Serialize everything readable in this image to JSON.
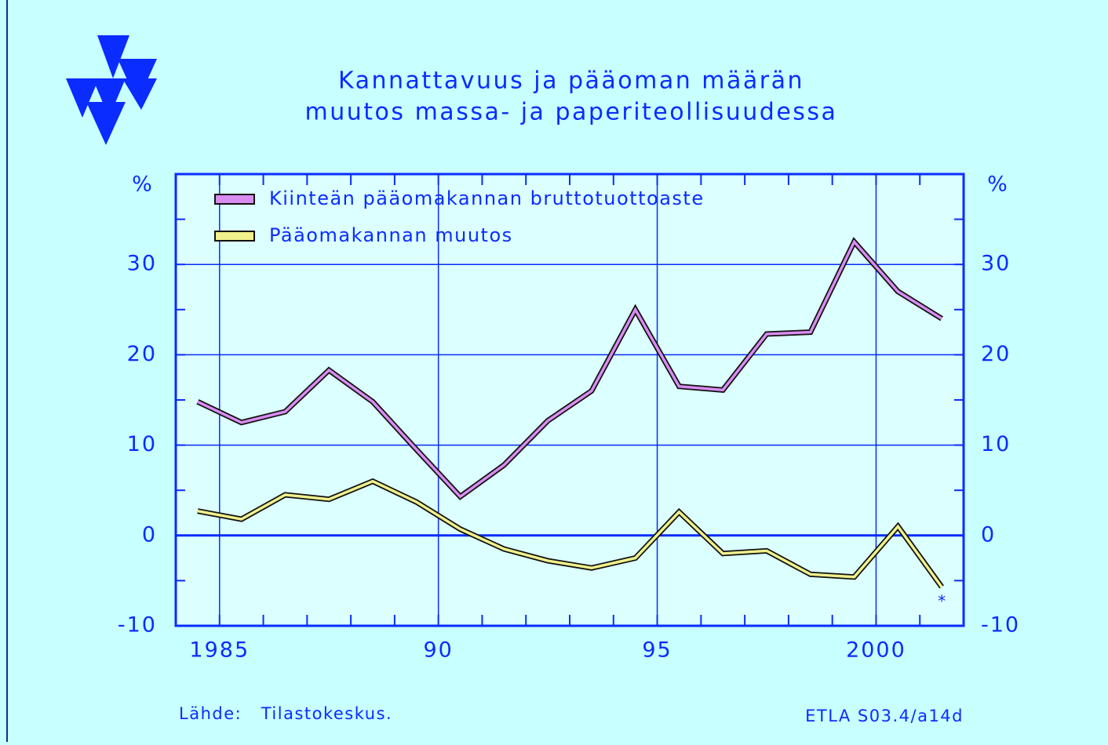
{
  "chart_data": {
    "type": "line",
    "title": [
      "Kannattavuus ja pääoman määrän",
      "muutos massa- ja paperiteollisuudessa"
    ],
    "y_label": "%",
    "x": [
      1984.5,
      1985.5,
      1986.5,
      1987.5,
      1988.5,
      1989.5,
      1990.5,
      1991.5,
      1992.5,
      1993.5,
      1994.5,
      1995.5,
      1996.5,
      1997.5,
      1998.5,
      1999.5,
      2000.5,
      2001.5
    ],
    "series": [
      {
        "name": "Kiinteän pääomakannan bruttotuottoaste",
        "color": "#d98cf0",
        "values": [
          14.8,
          12.5,
          13.7,
          18.3,
          14.8,
          9.5,
          4.3,
          7.8,
          12.7,
          16,
          25,
          16.5,
          16.1,
          22.3,
          22.5,
          32.5,
          27,
          24
        ]
      },
      {
        "name": "Pääomakannan muutos",
        "color": "#f0f08c",
        "values": [
          2.7,
          1.8,
          4.5,
          4,
          6,
          3.7,
          0.7,
          -1.5,
          -2.8,
          -3.6,
          -2.5,
          2.6,
          -2,
          -1.7,
          -4.3,
          -4.6,
          1,
          -5.7
        ]
      }
    ],
    "xlim": [
      1984,
      2002
    ],
    "xticks": [
      1985,
      {
        "value": 1990,
        "label": "90"
      },
      {
        "value": 1995,
        "label": "95"
      },
      2000
    ],
    "ylim": [
      -10,
      40
    ],
    "yticks": [
      -10,
      0,
      10,
      20,
      30
    ],
    "grid": true,
    "annotation": "*",
    "source": "Lähde:   Tilastokeskus.",
    "code": "ETLA S03.4/a14d"
  }
}
